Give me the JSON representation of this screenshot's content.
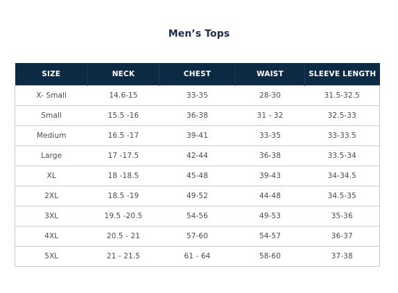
{
  "title": "Men’s Tops",
  "table": {
    "headers": [
      "SIZE",
      "NECK",
      "CHEST",
      "WAIST",
      "SLEEVE LENGTH"
    ],
    "rows": [
      [
        "X- Small",
        "14.6-15",
        "33-35",
        "28-30",
        "31.5-32.5"
      ],
      [
        "Small",
        "15.5 -16",
        "36-38",
        "31 - 32",
        "32.5-33"
      ],
      [
        "Medium",
        "16.5 -17",
        "39-41",
        "33-35",
        "33-33.5"
      ],
      [
        "Large",
        "17 -17.5",
        "42-44",
        "36-38",
        "33.5-34"
      ],
      [
        "XL",
        "18 -18.5",
        "45-48",
        "39-43",
        "34-34.5"
      ],
      [
        "2XL",
        "18.5 -19",
        "49-52",
        "44-48",
        "34.5-35"
      ],
      [
        "3XL",
        "19.5 -20.5",
        "54-56",
        "49-53",
        "35-36"
      ],
      [
        "4XL",
        "20.5 - 21",
        "57-60",
        "54-57",
        "36-37"
      ],
      [
        "5XL",
        "21 - 21.5",
        "61 - 64",
        "58-60",
        "37-38"
      ]
    ]
  },
  "colors": {
    "header_background": "#0d2a45",
    "title_text": "#1b2b48"
  }
}
